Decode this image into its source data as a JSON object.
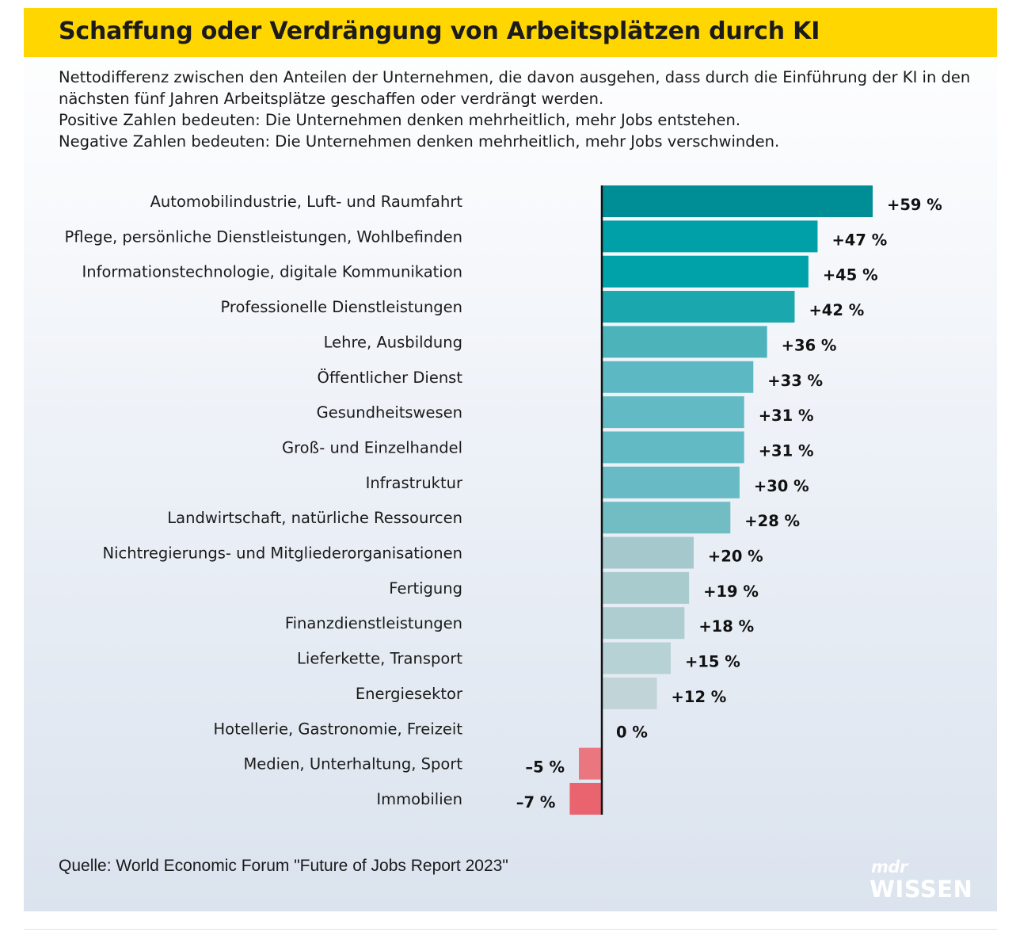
{
  "title": "Schaffung oder Verdrängung von Arbeitsplätzen durch KI",
  "description": [
    "Nettodifferenz zwischen den Anteilen der Unternehmen, die davon ausgehen, dass durch die Einführung der KI in den",
    "nächsten fünf Jahren Arbeitsplätze geschaffen oder verdrängt werden.",
    "Positive Zahlen bedeuten: Die Unternehmen denken mehrheitlich, mehr Jobs entstehen.",
    "Negative Zahlen bedeuten: Die Unternehmen denken mehrheitlich, mehr Jobs verschwinden."
  ],
  "source": "Quelle: World Economic Forum \"Future of Jobs Report 2023\"",
  "logo": {
    "top": "mdr",
    "bottom": "WISSEN"
  },
  "chart_data": {
    "type": "bar",
    "orientation": "horizontal",
    "categories": [
      "Automobilindustrie, Luft- und Raumfahrt",
      "Pflege, persönliche Dienstleistungen, Wohlbefinden",
      "Informationstechnologie, digitale Kommunikation",
      "Professionelle Dienstleistungen",
      "Lehre, Ausbildung",
      "Öffentlicher Dienst",
      "Gesundheitswesen",
      "Groß- und Einzelhandel",
      "Infrastruktur",
      "Landwirtschaft, natürliche Ressourcen",
      "Nichtregierungs- und Mitgliederorganisationen",
      "Fertigung",
      "Finanzdienstleistungen",
      "Lieferkette, Transport",
      "Energiesektor",
      "Hotellerie, Gastronomie, Freizeit",
      "Medien, Unterhaltung, Sport",
      "Immobilien"
    ],
    "values": [
      59,
      47,
      45,
      42,
      36,
      33,
      31,
      31,
      30,
      28,
      20,
      19,
      18,
      15,
      12,
      0,
      -5,
      -7
    ],
    "value_labels": [
      "+59 %",
      "+47 %",
      "+45 %",
      "+42 %",
      "+36 %",
      "+33 %",
      "+31 %",
      "+31 %",
      "+30 %",
      "+28 %",
      "+20 %",
      "+19 %",
      "+18 %",
      "+15 %",
      "+12 %",
      "0 %",
      "–5 %",
      "–7 %"
    ],
    "colors": [
      "#008e96",
      "#00a0a8",
      "#00a2a9",
      "#1aa7ae",
      "#4db3bb",
      "#5cb8c2",
      "#62bac4",
      "#62bac4",
      "#68bbc4",
      "#72bcc4",
      "#a4c8cc",
      "#a8cbce",
      "#adcdd0",
      "#b7d2d4",
      "#c1d4d7",
      "#c1d4d7",
      "#ea7680",
      "#ea6470"
    ],
    "xlim": [
      -7,
      59
    ],
    "xlabel": "",
    "ylabel": ""
  }
}
